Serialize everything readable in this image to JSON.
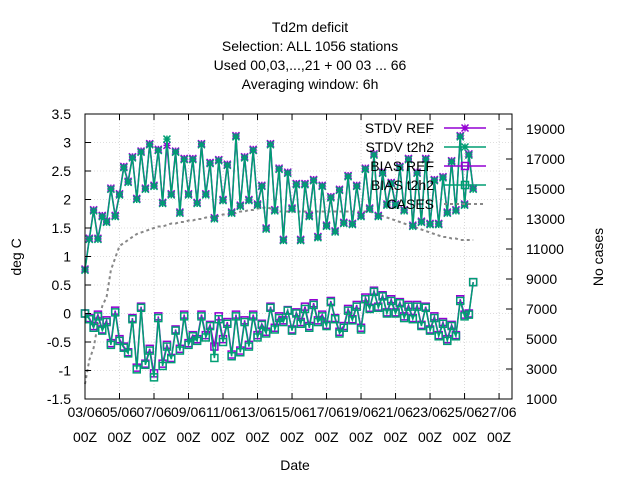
{
  "chart_data": {
    "type": "line",
    "title_lines": [
      "Td2m deficit",
      "Selection: ALL   1056 stations",
      "Used  00,03,...,21  + 00 03 ... 66",
      "Averaging window:  6h"
    ],
    "xlabel": "Date",
    "ylabel": "deg C",
    "y2label": "No cases",
    "xlim": [
      0,
      24.75
    ],
    "ylim": [
      -1.5,
      3.5
    ],
    "y2lim": [
      1000,
      20000
    ],
    "x_ticks": [
      {
        "line1": "03/06",
        "line2": "00Z",
        "day": 3
      },
      {
        "line1": "05/06",
        "line2": "00Z",
        "day": 5
      },
      {
        "line1": "07/06",
        "line2": "00Z",
        "day": 7
      },
      {
        "line1": "09/06",
        "line2": "00Z",
        "day": 9
      },
      {
        "line1": "11/06",
        "line2": "00Z",
        "day": 11
      },
      {
        "line1": "13/06",
        "line2": "00Z",
        "day": 13
      },
      {
        "line1": "15/06",
        "line2": "00Z",
        "day": 15
      },
      {
        "line1": "17/06",
        "line2": "00Z",
        "day": 17
      },
      {
        "line1": "19/06",
        "line2": "00Z",
        "day": 19
      },
      {
        "line1": "21/06",
        "line2": "00Z",
        "day": 21
      },
      {
        "line1": "23/06",
        "line2": "00Z",
        "day": 23
      },
      {
        "line1": "25/06",
        "line2": "00Z",
        "day": 25
      },
      {
        "line1": "27/06",
        "line2": "00Z",
        "day": 27
      }
    ],
    "y_ticks": [
      "-1.5",
      "-1",
      "-0.5",
      "0",
      "0.5",
      "1",
      "1.5",
      "2",
      "2.5",
      "3",
      "3.5"
    ],
    "y2_ticks": [
      "1000",
      "3000",
      "5000",
      "7000",
      "9000",
      "11000",
      "13000",
      "15000",
      "17000",
      "19000"
    ],
    "legend_position": "top-right",
    "series": [
      {
        "name": "STDV REF",
        "color": "#9400d3",
        "marker": "star",
        "dash": "",
        "x_start": 0,
        "x_step": 0.25,
        "values": [
          0.78,
          1.32,
          1.82,
          1.32,
          1.72,
          1.62,
          2.2,
          1.72,
          2.1,
          2.58,
          2.32,
          2.75,
          2.02,
          2.85,
          2.2,
          2.98,
          2.25,
          2.88,
          1.95,
          2.95,
          2.1,
          2.85,
          1.78,
          2.72,
          2.1,
          2.72,
          1.95,
          2.98,
          2.1,
          2.65,
          1.68,
          2.7,
          2.0,
          2.62,
          1.78,
          3.12,
          1.9,
          2.75,
          2.0,
          2.88,
          1.92,
          2.25,
          1.5,
          2.98,
          1.82,
          2.55,
          1.3,
          2.48,
          1.85,
          2.28,
          1.3,
          2.28,
          1.72,
          2.35,
          1.35,
          2.25,
          1.55,
          2.05,
          1.45,
          2.18,
          1.6,
          2.42,
          1.58,
          2.25,
          1.72,
          2.55,
          1.85,
          2.8,
          1.72,
          2.48,
          1.92,
          2.3,
          1.92,
          2.58,
          1.82,
          2.72,
          1.55,
          2.48,
          1.62,
          2.72,
          1.58,
          2.35,
          1.58,
          2.4,
          1.78,
          2.68,
          1.82,
          3.12,
          1.92,
          2.8,
          2.2
        ]
      },
      {
        "name": "STDV t2h2",
        "color": "#009e73",
        "marker": "star",
        "dash": "",
        "x_start": 0,
        "x_step": 0.25,
        "values": [
          0.76,
          1.3,
          1.8,
          1.3,
          1.7,
          1.6,
          2.18,
          1.7,
          2.08,
          2.56,
          2.3,
          2.73,
          2.0,
          2.83,
          2.18,
          2.96,
          2.23,
          2.86,
          1.93,
          3.06,
          2.08,
          2.83,
          1.76,
          2.7,
          2.08,
          2.7,
          1.93,
          2.96,
          2.08,
          2.63,
          1.66,
          2.68,
          1.98,
          2.6,
          1.76,
          3.1,
          1.88,
          2.73,
          1.98,
          2.86,
          1.9,
          2.23,
          1.48,
          2.96,
          1.8,
          2.53,
          1.28,
          2.46,
          1.83,
          2.26,
          1.28,
          2.26,
          1.7,
          2.33,
          1.33,
          2.23,
          1.53,
          2.03,
          1.43,
          2.16,
          1.58,
          2.4,
          1.56,
          2.23,
          1.7,
          2.53,
          1.83,
          2.78,
          1.7,
          2.46,
          1.9,
          2.28,
          1.9,
          2.56,
          1.8,
          2.7,
          1.53,
          2.46,
          1.6,
          2.7,
          1.56,
          2.33,
          1.56,
          2.38,
          1.76,
          2.66,
          1.8,
          3.1,
          1.9,
          2.78,
          2.18
        ]
      },
      {
        "name": "BIAS REF",
        "color": "#9400d3",
        "marker": "square",
        "dash": "",
        "x_start": 0,
        "x_step": 0.25,
        "values": [
          0.0,
          -0.08,
          -0.22,
          -0.02,
          -0.28,
          -0.12,
          -0.52,
          0.05,
          -0.45,
          -0.58,
          -0.68,
          -0.08,
          -0.95,
          0.12,
          -0.88,
          -0.62,
          -1.05,
          -0.05,
          -0.88,
          -0.55,
          -0.78,
          -0.28,
          -0.62,
          -0.02,
          -0.52,
          -0.38,
          -0.45,
          -0.02,
          -0.38,
          -0.2,
          -0.58,
          -0.05,
          -0.45,
          -0.15,
          -0.72,
          -0.02,
          -0.65,
          -0.12,
          -0.55,
          -0.02,
          -0.38,
          -0.18,
          -0.32,
          0.12,
          -0.25,
          -0.05,
          -0.12,
          0.06,
          -0.28,
          0.02,
          -0.15,
          0.12,
          -0.22,
          0.18,
          -0.12,
          -0.02,
          -0.2,
          0.22,
          -0.08,
          -0.32,
          -0.22,
          0.08,
          -0.1,
          0.15,
          -0.25,
          0.28,
          0.1,
          0.4,
          0.12,
          0.32,
          0.02,
          0.25,
          0.02,
          0.2,
          -0.05,
          0.15,
          -0.08,
          0.15,
          -0.2,
          0.12,
          -0.28,
          -0.05,
          -0.38,
          -0.15,
          -0.45,
          -0.2,
          -0.38,
          0.25,
          -0.02,
          0.0,
          0.55
        ]
      },
      {
        "name": "BIAS t2h2",
        "color": "#009e73",
        "marker": "square",
        "dash": "",
        "x_start": 0,
        "x_step": 0.25,
        "values": [
          0.0,
          -0.1,
          -0.25,
          -0.05,
          -0.3,
          -0.15,
          -0.55,
          0.02,
          -0.48,
          -0.6,
          -0.7,
          -0.1,
          -0.98,
          0.1,
          -0.9,
          -0.65,
          -1.12,
          -0.08,
          -0.92,
          -0.58,
          -0.8,
          -0.3,
          -0.65,
          -0.05,
          -0.55,
          -0.4,
          -0.48,
          -0.05,
          -0.42,
          -0.22,
          -0.78,
          -0.1,
          -0.5,
          -0.18,
          -0.75,
          -0.05,
          -0.68,
          -0.15,
          -0.58,
          -0.05,
          -0.42,
          -0.2,
          -0.35,
          0.1,
          -0.28,
          -0.08,
          -0.15,
          0.05,
          -0.3,
          0.0,
          -0.18,
          0.08,
          -0.25,
          0.15,
          -0.15,
          -0.05,
          -0.22,
          0.2,
          -0.1,
          -0.35,
          -0.25,
          0.05,
          -0.12,
          0.12,
          -0.28,
          0.25,
          0.08,
          0.38,
          0.1,
          0.3,
          0.0,
          0.22,
          0.0,
          0.18,
          -0.08,
          0.12,
          -0.1,
          0.12,
          -0.22,
          0.1,
          -0.3,
          -0.08,
          -0.4,
          -0.18,
          -0.48,
          -0.22,
          -0.4,
          0.22,
          -0.05,
          -0.02,
          0.55
        ]
      },
      {
        "name": "CASES",
        "color": "#888888",
        "marker": "none",
        "dash": "3,3",
        "axis": "y2",
        "x_start": 0,
        "x_step": 0.25,
        "values": [
          2000,
          3600,
          4400,
          6000,
          7200,
          7800,
          9600,
          10400,
          11200,
          11400,
          11600,
          11800,
          12000,
          12100,
          12200,
          12300,
          12400,
          12500,
          12500,
          12600,
          12700,
          12700,
          12800,
          12800,
          12900,
          12900,
          13000,
          13000,
          13100,
          13100,
          13200,
          13200,
          13300,
          13300,
          13400,
          13400,
          13500,
          13500,
          13600,
          13600,
          13700,
          13700,
          13800,
          13700,
          13600,
          13500,
          13500,
          13500,
          13500,
          13500,
          13500,
          13500,
          13500,
          13500,
          13500,
          13500,
          13500,
          13500,
          13500,
          13500,
          13500,
          13500,
          13500,
          13500,
          13500,
          13500,
          13500,
          13400,
          13300,
          13200,
          13100,
          13000,
          12900,
          12800,
          12700,
          12600,
          12500,
          12400,
          12300,
          12200,
          12100,
          12000,
          11900,
          11800,
          11800,
          11700,
          11700,
          11600,
          11600,
          11600,
          11600
        ]
      }
    ]
  }
}
